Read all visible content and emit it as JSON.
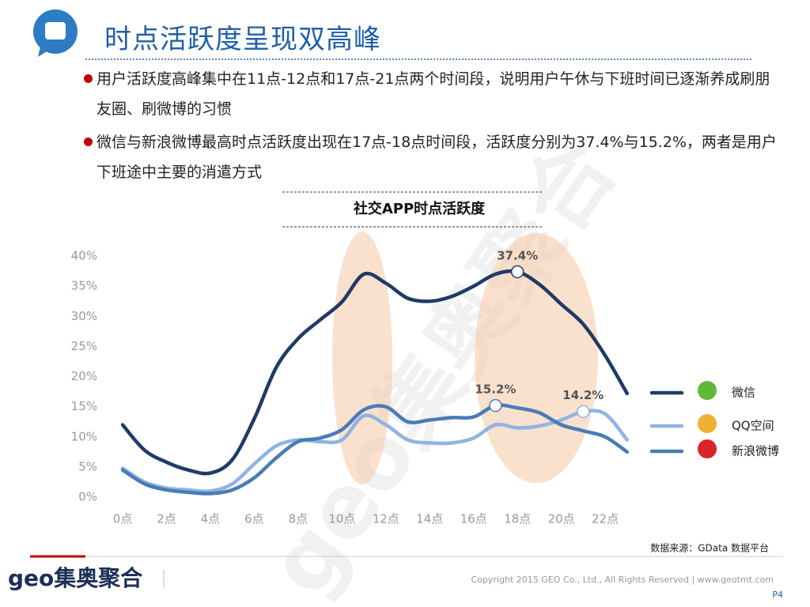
{
  "slide": {
    "title": "时点活跃度呈现双高峰",
    "bullets": [
      "用户活跃度高峰集中在11点-12点和17点-21点两个时间段，说明用户午休与下班时间已逐渐养成刷朋友圈、刷微博的习惯",
      "微信与新浪微博最高时点活跃度出现在17点-18点时间段，活跃度分别为37.4%与15.2%，两者是用户下班途中主要的消遣方式"
    ],
    "source": "数据来源：GData 数据平台",
    "logo": "geo集奥聚合",
    "copyright": "Copyright 2015 GEO Co., Ltd., All Rights Reserved   |   www.geotmt.com",
    "page": "P4"
  },
  "chart_data": {
    "type": "line",
    "title": "社交APP时点活跃度",
    "categories": [
      "0点",
      null,
      "2点",
      null,
      "4点",
      null,
      "6点",
      null,
      "8点",
      null,
      "10点",
      null,
      "12点",
      null,
      "14点",
      null,
      "16点",
      null,
      "18点",
      null,
      "20点",
      null,
      "22点",
      null
    ],
    "series": [
      {
        "name": "微信",
        "color": "#1f3a68",
        "values": [
          12,
          7.8,
          5.8,
          4.5,
          4,
          6.2,
          13,
          21.5,
          26.3,
          29.4,
          32.4,
          37,
          35.5,
          33,
          32.5,
          33.3,
          35,
          37,
          37.4,
          35.3,
          32,
          28.7,
          23.5,
          17.2
        ],
        "value_labels": [
          null,
          null,
          null,
          null,
          null,
          null,
          null,
          null,
          null,
          null,
          null,
          null,
          null,
          null,
          null,
          null,
          null,
          null,
          "37.4%",
          null,
          null,
          null,
          null,
          null
        ]
      },
      {
        "name": "QQ空间",
        "color": "#8fb4e3",
        "values": [
          4.8,
          2.5,
          1.5,
          1.2,
          1,
          2.2,
          5.5,
          8.5,
          9.5,
          9.2,
          9.5,
          13.5,
          12,
          9.5,
          9,
          9,
          9.8,
          12,
          11.5,
          11.8,
          12.8,
          14.2,
          13.8,
          9.5
        ],
        "value_labels": [
          null,
          null,
          null,
          null,
          null,
          null,
          null,
          null,
          null,
          null,
          null,
          null,
          null,
          null,
          null,
          null,
          null,
          null,
          null,
          null,
          null,
          "14.2%",
          null,
          null
        ]
      },
      {
        "name": "新浪微博",
        "color": "#4a7bb7",
        "values": [
          4.5,
          2.2,
          1.2,
          0.8,
          0.6,
          1.2,
          3.2,
          6.5,
          9.2,
          9.8,
          11.2,
          14.5,
          15,
          12.5,
          12.8,
          13.2,
          13.3,
          15.2,
          14.8,
          14,
          12,
          11,
          10,
          7.5
        ],
        "value_labels": [
          null,
          null,
          null,
          null,
          null,
          null,
          null,
          null,
          null,
          null,
          null,
          null,
          null,
          null,
          null,
          null,
          null,
          "15.2%",
          null,
          null,
          null,
          null,
          null,
          null
        ]
      }
    ],
    "ylim": [
      0,
      40
    ],
    "yticks": [
      {
        "value": 0,
        "label": "0%"
      },
      {
        "value": 5,
        "label": "5%"
      },
      {
        "value": 10,
        "label": "10%"
      },
      {
        "value": 15,
        "label": "15%"
      },
      {
        "value": 20,
        "label": "20%"
      },
      {
        "value": 25,
        "label": "25%"
      },
      {
        "value": 30,
        "label": "30%"
      },
      {
        "value": 35,
        "label": "35%"
      },
      {
        "value": 40,
        "label": "40%"
      }
    ],
    "grid": false,
    "legend": "right"
  }
}
